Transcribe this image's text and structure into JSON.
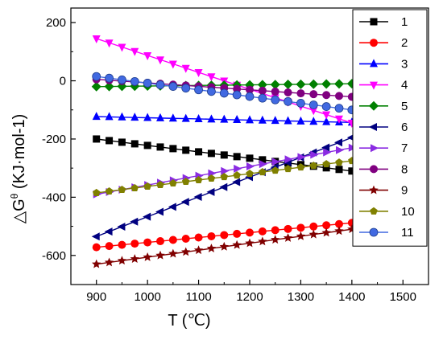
{
  "chart_data": {
    "type": "line",
    "xlabel": "T (℃)",
    "ylabel": "△G",
    "ylabel_superscript": "θ",
    "ylabel_unit": " (KJ·mol-1)",
    "xlim": [
      850,
      1550
    ],
    "ylim": [
      -700,
      250
    ],
    "xticks": [
      900,
      1000,
      1100,
      1200,
      1300,
      1400,
      1500
    ],
    "yticks": [
      -600,
      -400,
      -200,
      0,
      200
    ],
    "legend_position": "top-right",
    "grid": false,
    "x": [
      900,
      925,
      950,
      975,
      1000,
      1025,
      1050,
      1075,
      1100,
      1125,
      1150,
      1175,
      1200,
      1225,
      1250,
      1275,
      1300,
      1325,
      1350,
      1375,
      1400
    ],
    "series": [
      {
        "name": "1",
        "color": "#000000",
        "marker": "square",
        "values": [
          -200,
          -205.5,
          -211,
          -216.5,
          -222,
          -227.5,
          -233,
          -238.5,
          -244,
          -249.5,
          -255,
          -260.5,
          -266,
          -271.5,
          -277,
          -282.5,
          -288,
          -293.5,
          -299,
          -304.5,
          -310
        ]
      },
      {
        "name": "2",
        "color": "#ff0000",
        "marker": "circle",
        "values": [
          -572,
          -567.8,
          -563.6,
          -559.4,
          -555.2,
          -551,
          -546.8,
          -542.6,
          -538.4,
          -534.2,
          -530,
          -525.8,
          -521.6,
          -517.4,
          -513.2,
          -509,
          -504.8,
          -500.6,
          -496.4,
          -492.2,
          -488
        ]
      },
      {
        "name": "3",
        "color": "#0000ff",
        "marker": "triangle-up",
        "values": [
          -123,
          -124,
          -125,
          -126,
          -127,
          -128,
          -129,
          -130,
          -131,
          -132,
          -133,
          -134,
          -135,
          -136,
          -137,
          -138,
          -139,
          -140,
          -141,
          -142,
          -143
        ]
      },
      {
        "name": "4",
        "color": "#ff00ff",
        "marker": "triangle-down",
        "values": [
          145,
          130.5,
          116,
          101.5,
          87,
          72.5,
          58,
          43.5,
          29,
          14.5,
          0,
          -14.5,
          -29,
          -43.5,
          -58,
          -72.5,
          -87,
          -101.5,
          -116,
          -130.5,
          -145
        ]
      },
      {
        "name": "5",
        "color": "#008000",
        "marker": "diamond",
        "values": [
          -20,
          -19.5,
          -19,
          -18.5,
          -18,
          -17.5,
          -17,
          -16.5,
          -16,
          -15.5,
          -15,
          -14.5,
          -14,
          -13.5,
          -13,
          -12.5,
          -12,
          -11.5,
          -11,
          -10.5,
          -10
        ]
      },
      {
        "name": "6",
        "color": "#000080",
        "marker": "triangle-left",
        "values": [
          -535,
          -518,
          -501,
          -484,
          -467,
          -450,
          -433,
          -416,
          -399,
          -382,
          -365,
          -348,
          -331,
          -314,
          -297,
          -280,
          -263,
          -246,
          -229,
          -212,
          -195
        ]
      },
      {
        "name": "7",
        "color": "#8a2be2",
        "marker": "triangle-right",
        "values": [
          -390,
          -382,
          -374,
          -366,
          -358,
          -350,
          -342,
          -334,
          -326,
          -318,
          -310,
          -302,
          -294,
          -286,
          -278,
          -270,
          -262,
          -254,
          -246,
          -238,
          -230
        ]
      },
      {
        "name": "8",
        "color": "#800080",
        "marker": "circle",
        "values": [
          5,
          2,
          -1,
          -4,
          -7,
          -10,
          -13,
          -16,
          -19,
          -22,
          -25,
          -28,
          -31,
          -34,
          -37,
          -40,
          -43,
          -46,
          -49,
          -52,
          -55
        ]
      },
      {
        "name": "9",
        "color": "#800000",
        "marker": "star",
        "values": [
          -630,
          -624,
          -618,
          -612,
          -606,
          -600,
          -594,
          -588,
          -582,
          -576,
          -570,
          -564,
          -558,
          -552,
          -546,
          -540,
          -534,
          -528,
          -522,
          -516,
          -510
        ]
      },
      {
        "name": "10",
        "color": "#808000",
        "marker": "pentagon",
        "values": [
          -385,
          -379.5,
          -374,
          -368.5,
          -363,
          -357.5,
          -352,
          -346.5,
          -341,
          -335.5,
          -330,
          -324.5,
          -319,
          -313.5,
          -308,
          -302.5,
          -297,
          -291.5,
          -286,
          -280.5,
          -275
        ]
      },
      {
        "name": "11",
        "color": "#4169e1",
        "marker": "circle-half",
        "values": [
          15,
          9.25,
          3.5,
          -2.25,
          -8,
          -13.75,
          -19.5,
          -25.25,
          -31,
          -36.75,
          -42.5,
          -48.25,
          -54,
          -59.75,
          -65.5,
          -71.25,
          -77,
          -82.75,
          -88.5,
          -94.25,
          -100
        ]
      }
    ]
  }
}
